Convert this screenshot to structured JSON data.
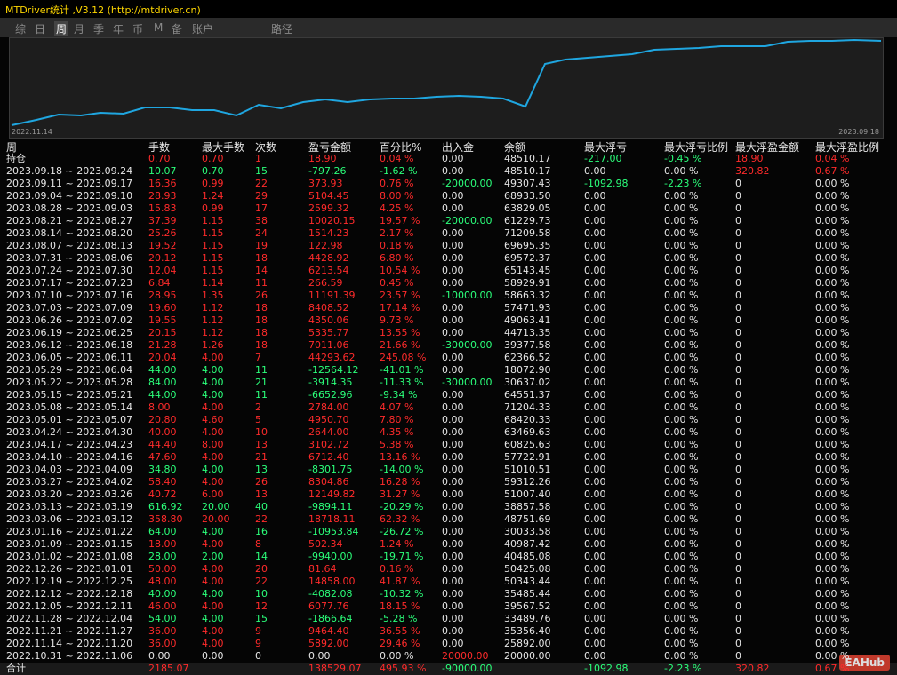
{
  "title": "MTDriver统计 ,V3.12 (http://mtdriver.cn)",
  "tabs": [
    "综",
    "日",
    "周",
    "月",
    "季",
    "年",
    "币",
    "M",
    "备",
    "账户",
    "路径"
  ],
  "chart": {
    "start_label": "2022.11.14",
    "end_label": "2023.09.18"
  },
  "table": {
    "headers": [
      "周",
      "手数",
      "最大手数",
      "次数",
      "盈亏金额",
      "百分比%",
      "出入金",
      "余额",
      "最大浮亏",
      "最大浮亏比例",
      "最大浮盈金额",
      "最大浮盈比例"
    ],
    "rows": [
      [
        "持仓",
        "0.70",
        "0.70",
        "1",
        "18.90",
        "0.04 %",
        "0.00",
        "48510.17",
        "-217.00",
        "-0.45 %",
        "18.90",
        "0.04 %"
      ],
      [
        "2023.09.18 ~ 2023.09.24",
        "10.07",
        "0.70",
        "15",
        "-797.26",
        "-1.62 %",
        "0.00",
        "48510.17",
        "0.00",
        "0.00 %",
        "320.82",
        "0.67 %"
      ],
      [
        "2023.09.11 ~ 2023.09.17",
        "16.36",
        "0.99",
        "22",
        "373.93",
        "0.76 %",
        "-20000.00",
        "49307.43",
        "-1092.98",
        "-2.23 %",
        "0",
        "0.00 %"
      ],
      [
        "2023.09.04 ~ 2023.09.10",
        "28.93",
        "1.24",
        "29",
        "5104.45",
        "8.00 %",
        "0.00",
        "68933.50",
        "0.00",
        "0.00 %",
        "0",
        "0.00 %"
      ],
      [
        "2023.08.28 ~ 2023.09.03",
        "15.83",
        "0.99",
        "17",
        "2599.32",
        "4.25 %",
        "0.00",
        "63829.05",
        "0.00",
        "0.00 %",
        "0",
        "0.00 %"
      ],
      [
        "2023.08.21 ~ 2023.08.27",
        "37.39",
        "1.15",
        "38",
        "10020.15",
        "19.57 %",
        "-20000.00",
        "61229.73",
        "0.00",
        "0.00 %",
        "0",
        "0.00 %"
      ],
      [
        "2023.08.14 ~ 2023.08.20",
        "25.26",
        "1.15",
        "24",
        "1514.23",
        "2.17 %",
        "0.00",
        "71209.58",
        "0.00",
        "0.00 %",
        "0",
        "0.00 %"
      ],
      [
        "2023.08.07 ~ 2023.08.13",
        "19.52",
        "1.15",
        "19",
        "122.98",
        "0.18 %",
        "0.00",
        "69695.35",
        "0.00",
        "0.00 %",
        "0",
        "0.00 %"
      ],
      [
        "2023.07.31 ~ 2023.08.06",
        "20.12",
        "1.15",
        "18",
        "4428.92",
        "6.80 %",
        "0.00",
        "69572.37",
        "0.00",
        "0.00 %",
        "0",
        "0.00 %"
      ],
      [
        "2023.07.24 ~ 2023.07.30",
        "12.04",
        "1.15",
        "14",
        "6213.54",
        "10.54 %",
        "0.00",
        "65143.45",
        "0.00",
        "0.00 %",
        "0",
        "0.00 %"
      ],
      [
        "2023.07.17 ~ 2023.07.23",
        "6.84",
        "1.14",
        "11",
        "266.59",
        "0.45 %",
        "0.00",
        "58929.91",
        "0.00",
        "0.00 %",
        "0",
        "0.00 %"
      ],
      [
        "2023.07.10 ~ 2023.07.16",
        "28.95",
        "1.35",
        "26",
        "11191.39",
        "23.57 %",
        "-10000.00",
        "58663.32",
        "0.00",
        "0.00 %",
        "0",
        "0.00 %"
      ],
      [
        "2023.07.03 ~ 2023.07.09",
        "19.60",
        "1.12",
        "18",
        "8408.52",
        "17.14 %",
        "0.00",
        "57471.93",
        "0.00",
        "0.00 %",
        "0",
        "0.00 %"
      ],
      [
        "2023.06.26 ~ 2023.07.02",
        "19.55",
        "1.12",
        "18",
        "4350.06",
        "9.73 %",
        "0.00",
        "49063.41",
        "0.00",
        "0.00 %",
        "0",
        "0.00 %"
      ],
      [
        "2023.06.19 ~ 2023.06.25",
        "20.15",
        "1.12",
        "18",
        "5335.77",
        "13.55 %",
        "0.00",
        "44713.35",
        "0.00",
        "0.00 %",
        "0",
        "0.00 %"
      ],
      [
        "2023.06.12 ~ 2023.06.18",
        "21.28",
        "1.26",
        "18",
        "7011.06",
        "21.66 %",
        "-30000.00",
        "39377.58",
        "0.00",
        "0.00 %",
        "0",
        "0.00 %"
      ],
      [
        "2023.06.05 ~ 2023.06.11",
        "20.04",
        "4.00",
        "7",
        "44293.62",
        "245.08 %",
        "0.00",
        "62366.52",
        "0.00",
        "0.00 %",
        "0",
        "0.00 %"
      ],
      [
        "2023.05.29 ~ 2023.06.04",
        "44.00",
        "4.00",
        "11",
        "-12564.12",
        "-41.01 %",
        "0.00",
        "18072.90",
        "0.00",
        "0.00 %",
        "0",
        "0.00 %"
      ],
      [
        "2023.05.22 ~ 2023.05.28",
        "84.00",
        "4.00",
        "21",
        "-3914.35",
        "-11.33 %",
        "-30000.00",
        "30637.02",
        "0.00",
        "0.00 %",
        "0",
        "0.00 %"
      ],
      [
        "2023.05.15 ~ 2023.05.21",
        "44.00",
        "4.00",
        "11",
        "-6652.96",
        "-9.34 %",
        "0.00",
        "64551.37",
        "0.00",
        "0.00 %",
        "0",
        "0.00 %"
      ],
      [
        "2023.05.08 ~ 2023.05.14",
        "8.00",
        "4.00",
        "2",
        "2784.00",
        "4.07 %",
        "0.00",
        "71204.33",
        "0.00",
        "0.00 %",
        "0",
        "0.00 %"
      ],
      [
        "2023.05.01 ~ 2023.05.07",
        "20.80",
        "4.60",
        "5",
        "4950.70",
        "7.80 %",
        "0.00",
        "68420.33",
        "0.00",
        "0.00 %",
        "0",
        "0.00 %"
      ],
      [
        "2023.04.24 ~ 2023.04.30",
        "40.00",
        "4.00",
        "10",
        "2644.00",
        "4.35 %",
        "0.00",
        "63469.63",
        "0.00",
        "0.00 %",
        "0",
        "0.00 %"
      ],
      [
        "2023.04.17 ~ 2023.04.23",
        "44.40",
        "8.00",
        "13",
        "3102.72",
        "5.38 %",
        "0.00",
        "60825.63",
        "0.00",
        "0.00 %",
        "0",
        "0.00 %"
      ],
      [
        "2023.04.10 ~ 2023.04.16",
        "47.60",
        "4.00",
        "21",
        "6712.40",
        "13.16 %",
        "0.00",
        "57722.91",
        "0.00",
        "0.00 %",
        "0",
        "0.00 %"
      ],
      [
        "2023.04.03 ~ 2023.04.09",
        "34.80",
        "4.00",
        "13",
        "-8301.75",
        "-14.00 %",
        "0.00",
        "51010.51",
        "0.00",
        "0.00 %",
        "0",
        "0.00 %"
      ],
      [
        "2023.03.27 ~ 2023.04.02",
        "58.40",
        "4.00",
        "26",
        "8304.86",
        "16.28 %",
        "0.00",
        "59312.26",
        "0.00",
        "0.00 %",
        "0",
        "0.00 %"
      ],
      [
        "2023.03.20 ~ 2023.03.26",
        "40.72",
        "6.00",
        "13",
        "12149.82",
        "31.27 %",
        "0.00",
        "51007.40",
        "0.00",
        "0.00 %",
        "0",
        "0.00 %"
      ],
      [
        "2023.03.13 ~ 2023.03.19",
        "616.92",
        "20.00",
        "40",
        "-9894.11",
        "-20.29 %",
        "0.00",
        "38857.58",
        "0.00",
        "0.00 %",
        "0",
        "0.00 %"
      ],
      [
        "2023.03.06 ~ 2023.03.12",
        "358.80",
        "20.00",
        "22",
        "18718.11",
        "62.32 %",
        "0.00",
        "48751.69",
        "0.00",
        "0.00 %",
        "0",
        "0.00 %"
      ],
      [
        "2023.01.16 ~ 2023.01.22",
        "64.00",
        "4.00",
        "16",
        "-10953.84",
        "-26.72 %",
        "0.00",
        "30033.58",
        "0.00",
        "0.00 %",
        "0",
        "0.00 %"
      ],
      [
        "2023.01.09 ~ 2023.01.15",
        "18.00",
        "4.00",
        "8",
        "502.34",
        "1.24 %",
        "0.00",
        "40987.42",
        "0.00",
        "0.00 %",
        "0",
        "0.00 %"
      ],
      [
        "2023.01.02 ~ 2023.01.08",
        "28.00",
        "2.00",
        "14",
        "-9940.00",
        "-19.71 %",
        "0.00",
        "40485.08",
        "0.00",
        "0.00 %",
        "0",
        "0.00 %"
      ],
      [
        "2022.12.26 ~ 2023.01.01",
        "50.00",
        "4.00",
        "20",
        "81.64",
        "0.16 %",
        "0.00",
        "50425.08",
        "0.00",
        "0.00 %",
        "0",
        "0.00 %"
      ],
      [
        "2022.12.19 ~ 2022.12.25",
        "48.00",
        "4.00",
        "22",
        "14858.00",
        "41.87 %",
        "0.00",
        "50343.44",
        "0.00",
        "0.00 %",
        "0",
        "0.00 %"
      ],
      [
        "2022.12.12 ~ 2022.12.18",
        "40.00",
        "4.00",
        "10",
        "-4082.08",
        "-10.32 %",
        "0.00",
        "35485.44",
        "0.00",
        "0.00 %",
        "0",
        "0.00 %"
      ],
      [
        "2022.12.05 ~ 2022.12.11",
        "46.00",
        "4.00",
        "12",
        "6077.76",
        "18.15 %",
        "0.00",
        "39567.52",
        "0.00",
        "0.00 %",
        "0",
        "0.00 %"
      ],
      [
        "2022.11.28 ~ 2022.12.04",
        "54.00",
        "4.00",
        "15",
        "-1866.64",
        "-5.28 %",
        "0.00",
        "33489.76",
        "0.00",
        "0.00 %",
        "0",
        "0.00 %"
      ],
      [
        "2022.11.21 ~ 2022.11.27",
        "36.00",
        "4.00",
        "9",
        "9464.40",
        "36.55 %",
        "0.00",
        "35356.40",
        "0.00",
        "0.00 %",
        "0",
        "0.00 %"
      ],
      [
        "2022.11.14 ~ 2022.11.20",
        "36.00",
        "4.00",
        "9",
        "5892.00",
        "29.46 %",
        "0.00",
        "25892.00",
        "0.00",
        "0.00 %",
        "0",
        "0.00 %"
      ],
      [
        "2022.10.31 ~ 2022.11.06",
        "0.00",
        "0.00",
        "0",
        "0.00",
        "0.00 %",
        "20000.00",
        "20000.00",
        "0.00",
        "0.00 %",
        "0",
        "0.00 %"
      ],
      [
        "合计",
        "2185.07",
        null,
        null,
        "138529.07",
        "495.93 %",
        "-90000.00",
        null,
        "-1092.98",
        "-2.23 %",
        "320.82",
        "0.67 %"
      ]
    ]
  },
  "watermark": "EAHub"
}
